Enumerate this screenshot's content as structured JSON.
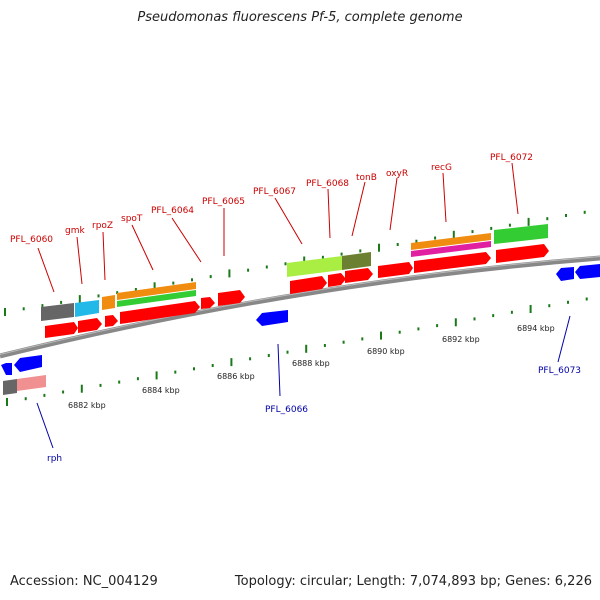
{
  "title": "Pseudomonas fluorescens Pf-5, complete genome",
  "footer": {
    "accession": "Accession: NC_004129",
    "topology": "Topology: circular; Length: 7,074,893 bp; Genes: 6,226"
  },
  "colors": {
    "forward_gene": "#ff0000",
    "reverse_gene": "#0000ff",
    "forward_label": "#cc0000",
    "reverse_label": "#0000aa",
    "tick": "#1a7a1a",
    "backbone": "#888888",
    "gray_feature": "#666666",
    "cyan_feature": "#22b8e8",
    "orange_feature": "#f08c10",
    "green_feature": "#33cc33",
    "yellowgreen_feature": "#aaee44",
    "olive_feature": "#6b8030",
    "pink_feature": "#e020a0",
    "salmon_feature": "#f09090"
  },
  "scale_labels": [
    "6882 kbp",
    "6884 kbp",
    "6886 kbp",
    "6888 kbp",
    "6890 kbp",
    "6892 kbp",
    "6894 kbp"
  ],
  "gene_labels": {
    "forward": [
      "PFL_6060",
      "gmk",
      "rpoZ",
      "spoT",
      "PFL_6064",
      "PFL_6065",
      "PFL_6067",
      "PFL_6068",
      "tonB",
      "oxyR",
      "recG",
      "PFL_6072"
    ],
    "reverse": [
      "rph",
      "PFL_6066",
      "PFL_6073"
    ]
  }
}
